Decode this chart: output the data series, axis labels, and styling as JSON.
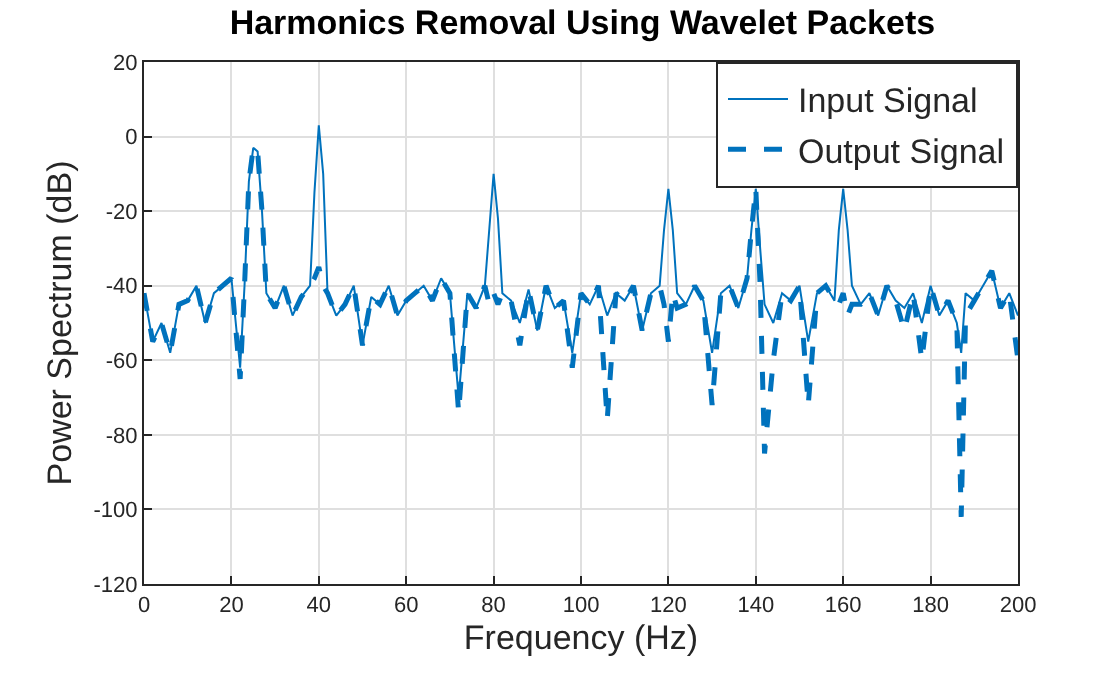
{
  "chart_data": {
    "type": "line",
    "title": "Harmonics Removal Using Wavelet Packets",
    "xlabel": "Frequency (Hz)",
    "ylabel": "Power Spectrum (dB)",
    "x": [
      0,
      2,
      4,
      6,
      8,
      10,
      12,
      14,
      16,
      18,
      20,
      22,
      23,
      24,
      25,
      26,
      27,
      28,
      30,
      32,
      34,
      36,
      38,
      39,
      40,
      41,
      42,
      44,
      46,
      48,
      50,
      52,
      54,
      56,
      58,
      60,
      62,
      64,
      66,
      68,
      70,
      72,
      74,
      76,
      78,
      79,
      80,
      81,
      82,
      84,
      86,
      88,
      90,
      92,
      94,
      96,
      98,
      100,
      102,
      104,
      106,
      108,
      110,
      112,
      114,
      116,
      118,
      119,
      120,
      121,
      122,
      124,
      126,
      128,
      130,
      132,
      134,
      136,
      138,
      139,
      140,
      141,
      142,
      144,
      146,
      148,
      150,
      152,
      154,
      156,
      158,
      159,
      160,
      161,
      162,
      164,
      166,
      168,
      170,
      172,
      174,
      176,
      178,
      180,
      182,
      184,
      186,
      187,
      188,
      190,
      192,
      194,
      196,
      198,
      200
    ],
    "series": [
      {
        "name": "Input Signal",
        "color": "#0072bd",
        "line_style": "solid",
        "values": [
          -42,
          -55,
          -50,
          -58,
          -45,
          -44,
          -40,
          -50,
          -42,
          -40,
          -38,
          -62,
          -40,
          -12,
          -3,
          -4,
          -20,
          -42,
          -46,
          -40,
          -48,
          -43,
          -40,
          -15,
          3,
          -10,
          -42,
          -48,
          -45,
          -40,
          -56,
          -43,
          -45,
          -40,
          -48,
          -44,
          -42,
          -40,
          -44,
          -38,
          -42,
          -70,
          -42,
          -46,
          -40,
          -25,
          -10,
          -22,
          -42,
          -44,
          -50,
          -41,
          -52,
          -40,
          -46,
          -44,
          -58,
          -42,
          -45,
          -40,
          -48,
          -42,
          -44,
          -40,
          -52,
          -42,
          -40,
          -25,
          -14,
          -25,
          -42,
          -45,
          -40,
          -44,
          -58,
          -42,
          -40,
          -46,
          -38,
          -25,
          -14,
          -30,
          -45,
          -50,
          -42,
          -44,
          -40,
          -55,
          -42,
          -40,
          -44,
          -25,
          -14,
          -25,
          -40,
          -45,
          -42,
          -48,
          -40,
          -44,
          -46,
          -42,
          -50,
          -40,
          -48,
          -44,
          -50,
          -58,
          -42,
          -44,
          -40,
          -36,
          -46,
          -42,
          -48
        ]
      },
      {
        "name": "Output Signal",
        "color": "#0072bd",
        "line_style": "dashed",
        "values": [
          -42,
          -55,
          -50,
          -58,
          -45,
          -44,
          -40,
          -50,
          -42,
          -40,
          -38,
          -65,
          -40,
          -12,
          -3,
          -4,
          -20,
          -42,
          -46,
          -40,
          -48,
          -43,
          -40,
          -38,
          -35,
          -40,
          -42,
          -48,
          -45,
          -40,
          -56,
          -43,
          -45,
          -40,
          -48,
          -44,
          -42,
          -40,
          -44,
          -38,
          -42,
          -74,
          -42,
          -46,
          -40,
          -45,
          -42,
          -45,
          -42,
          -44,
          -56,
          -41,
          -52,
          -40,
          -46,
          -44,
          -62,
          -42,
          -45,
          -40,
          -76,
          -42,
          -44,
          -40,
          -52,
          -42,
          -40,
          -45,
          -55,
          -42,
          -46,
          -45,
          -40,
          -44,
          -72,
          -42,
          -40,
          -46,
          -38,
          -25,
          -14,
          -40,
          -85,
          -60,
          -42,
          -44,
          -40,
          -72,
          -42,
          -40,
          -44,
          -45,
          -42,
          -48,
          -45,
          -45,
          -42,
          -48,
          -40,
          -44,
          -52,
          -42,
          -60,
          -40,
          -48,
          -44,
          -50,
          -102,
          -48,
          -44,
          -40,
          -36,
          -46,
          -42,
          -60
        ]
      }
    ],
    "xlim": [
      0,
      200
    ],
    "xticks": [
      0,
      20,
      40,
      60,
      80,
      100,
      120,
      140,
      160,
      180,
      200
    ],
    "ylim": [
      -120,
      20
    ],
    "yticks": [
      -120,
      -100,
      -80,
      -60,
      -40,
      -20,
      0,
      20
    ],
    "grid": true,
    "legend": "top right",
    "marker": "none"
  }
}
